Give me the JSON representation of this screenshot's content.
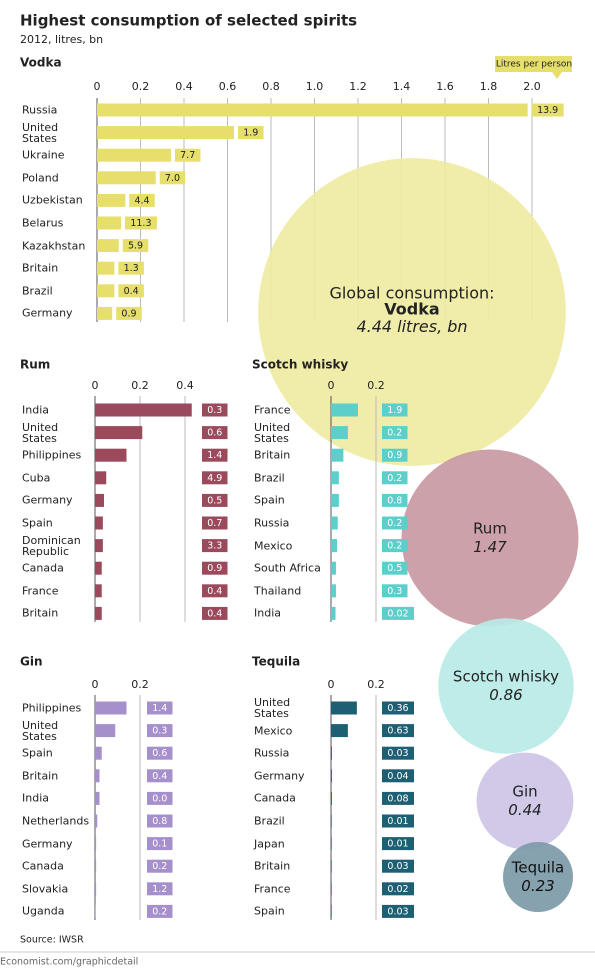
{
  "header": {
    "title": "Highest consumption of selected spirits",
    "subtitle": "2012, litres, bn"
  },
  "legend": {
    "per_person": "Litres per person",
    "global": "Global consumption:",
    "unit": "litres, bn"
  },
  "footer": {
    "source": "Source: IWSR",
    "url": "Economist.com/graphicdetail"
  },
  "chart_data": [
    {
      "type": "bar",
      "orientation": "horizontal",
      "title": "Vodka",
      "categories": [
        "Russia",
        "United States",
        "Ukraine",
        "Poland",
        "Uzbekistan",
        "Belarus",
        "Kazakhstan",
        "Britain",
        "Brazil",
        "Germany"
      ],
      "values": [
        1.98,
        0.63,
        0.34,
        0.27,
        0.13,
        0.11,
        0.1,
        0.08,
        0.08,
        0.07
      ],
      "color": "#e6df6c",
      "label_color": "#e6df6c",
      "label_text_color": "#222",
      "xlim": [
        0,
        2.0
      ],
      "xticks": [
        0,
        0.2,
        0.4,
        0.6,
        0.8,
        {
          "value": 1,
          "label": "1.0"
        },
        1.2,
        1.4,
        1.6,
        1.8,
        {
          "value": 2,
          "label": "2.0"
        }
      ],
      "grid": true,
      "per_person": {
        "values": [
          13.9,
          1.9,
          7.7,
          7,
          4.4,
          11.3,
          5.9,
          1.3,
          0.4,
          0.9
        ],
        "value_labels": [
          "13.9",
          "1.9",
          "7.7",
          "7.0",
          "4.4",
          "11.3",
          "5.9",
          "1.3",
          "0.4",
          "0.9"
        ]
      },
      "global": 4.44,
      "bubble_color": "#efeba3"
    },
    {
      "type": "bar",
      "orientation": "horizontal",
      "title": "Rum",
      "categories": [
        "India",
        "United States",
        "Philippines",
        "Cuba",
        "Germany",
        "Spain",
        "Dominican Republic",
        "Canada",
        "France",
        "Britain"
      ],
      "values": [
        0.43,
        0.21,
        0.14,
        0.05,
        0.04,
        0.035,
        0.035,
        0.03,
        0.03,
        0.03
      ],
      "color": "#9b4a5c",
      "label_color": "#9b4a5c",
      "label_text_color": "#fff",
      "xlim": [
        0,
        0.4
      ],
      "xticks": [
        0,
        0.2,
        0.4
      ],
      "grid": true,
      "per_person": {
        "values": [
          0.3,
          0.6,
          1.4,
          4.9,
          0.5,
          0.7,
          3.3,
          0.9,
          0.4,
          0.4
        ],
        "value_labels": [
          "0.3",
          "0.6",
          "1.4",
          "4.9",
          "0.5",
          "0.7",
          "3.3",
          "0.9",
          "0.4",
          "0.4"
        ]
      },
      "global": 1.47,
      "bubble_color": "#c89aa2"
    },
    {
      "type": "bar",
      "orientation": "horizontal",
      "title": "Scotch whisky",
      "categories": [
        "France",
        "United States",
        "Britain",
        "Brazil",
        "Spain",
        "Russia",
        "Mexico",
        "South Africa",
        "Thailand",
        "India"
      ],
      "values": [
        0.12,
        0.075,
        0.055,
        0.035,
        0.035,
        0.03,
        0.027,
        0.022,
        0.022,
        0.02
      ],
      "color": "#5ccfcb",
      "label_color": "#5ccfcb",
      "label_text_color": "#fff",
      "xlim": [
        0,
        0.2
      ],
      "xticks": [
        0,
        0.2
      ],
      "grid": true,
      "per_person": {
        "values": [
          1.9,
          0.2,
          0.9,
          0.2,
          0.8,
          0.2,
          0.2,
          0.5,
          0.3,
          0.02
        ],
        "value_labels": [
          "1.9",
          "0.2",
          "0.9",
          "0.2",
          "0.8",
          "0.2",
          "0.2",
          "0.5",
          "0.3",
          "0.02"
        ]
      },
      "global": 0.86,
      "bubble_color": "#b9ebe6"
    },
    {
      "type": "bar",
      "orientation": "horizontal",
      "title": "Gin",
      "categories": [
        "Philippines",
        "United States",
        "Spain",
        "Britain",
        "India",
        "Netherlands",
        "Germany",
        "Canada",
        "Slovakia",
        "Uganda"
      ],
      "values": [
        0.14,
        0.09,
        0.03,
        0.02,
        0.02,
        0.01,
        0.005,
        0.005,
        0.005,
        0.003
      ],
      "color": "#a690cc",
      "label_color": "#a690cc",
      "label_text_color": "#fff",
      "xlim": [
        0,
        0.2
      ],
      "xticks": [
        0,
        0.2
      ],
      "grid": true,
      "per_person": {
        "values": [
          1.4,
          0.3,
          0.6,
          0.4,
          0,
          0.8,
          0.1,
          0.2,
          1.2,
          0.2
        ],
        "value_labels": [
          "1.4",
          "0.3",
          "0.6",
          "0.4",
          "0.0",
          "0.8",
          "0.1",
          "0.2",
          "1.2",
          "0.2"
        ]
      },
      "global": 0.44,
      "bubble_color": "#cfc4e6"
    },
    {
      "type": "bar",
      "orientation": "horizontal",
      "title": "Tequila",
      "categories": [
        "United States",
        "Mexico",
        "Russia",
        "Germany",
        "Canada",
        "Brazil",
        "Japan",
        "Britain",
        "France",
        "Spain"
      ],
      "values": [
        0.115,
        0.075,
        0.004,
        0.004,
        0.004,
        0.003,
        0.003,
        0.003,
        0.003,
        0.003
      ],
      "color": "#1e5f73",
      "label_color": "#1e5f73",
      "label_text_color": "#fff",
      "xlim": [
        0,
        0.2
      ],
      "xticks": [
        0,
        0.2
      ],
      "grid": true,
      "per_person": {
        "values": [
          0.36,
          0.63,
          0.03,
          0.04,
          0.08,
          0.01,
          0.01,
          0.03,
          0.02,
          0.03
        ],
        "value_labels": [
          "0.36",
          "0.63",
          "0.03",
          "0.04",
          "0.08",
          "0.01",
          "0.01",
          "0.03",
          "0.02",
          "0.03"
        ]
      },
      "global": 0.23,
      "bubble_color": "#7d9ba9"
    }
  ]
}
